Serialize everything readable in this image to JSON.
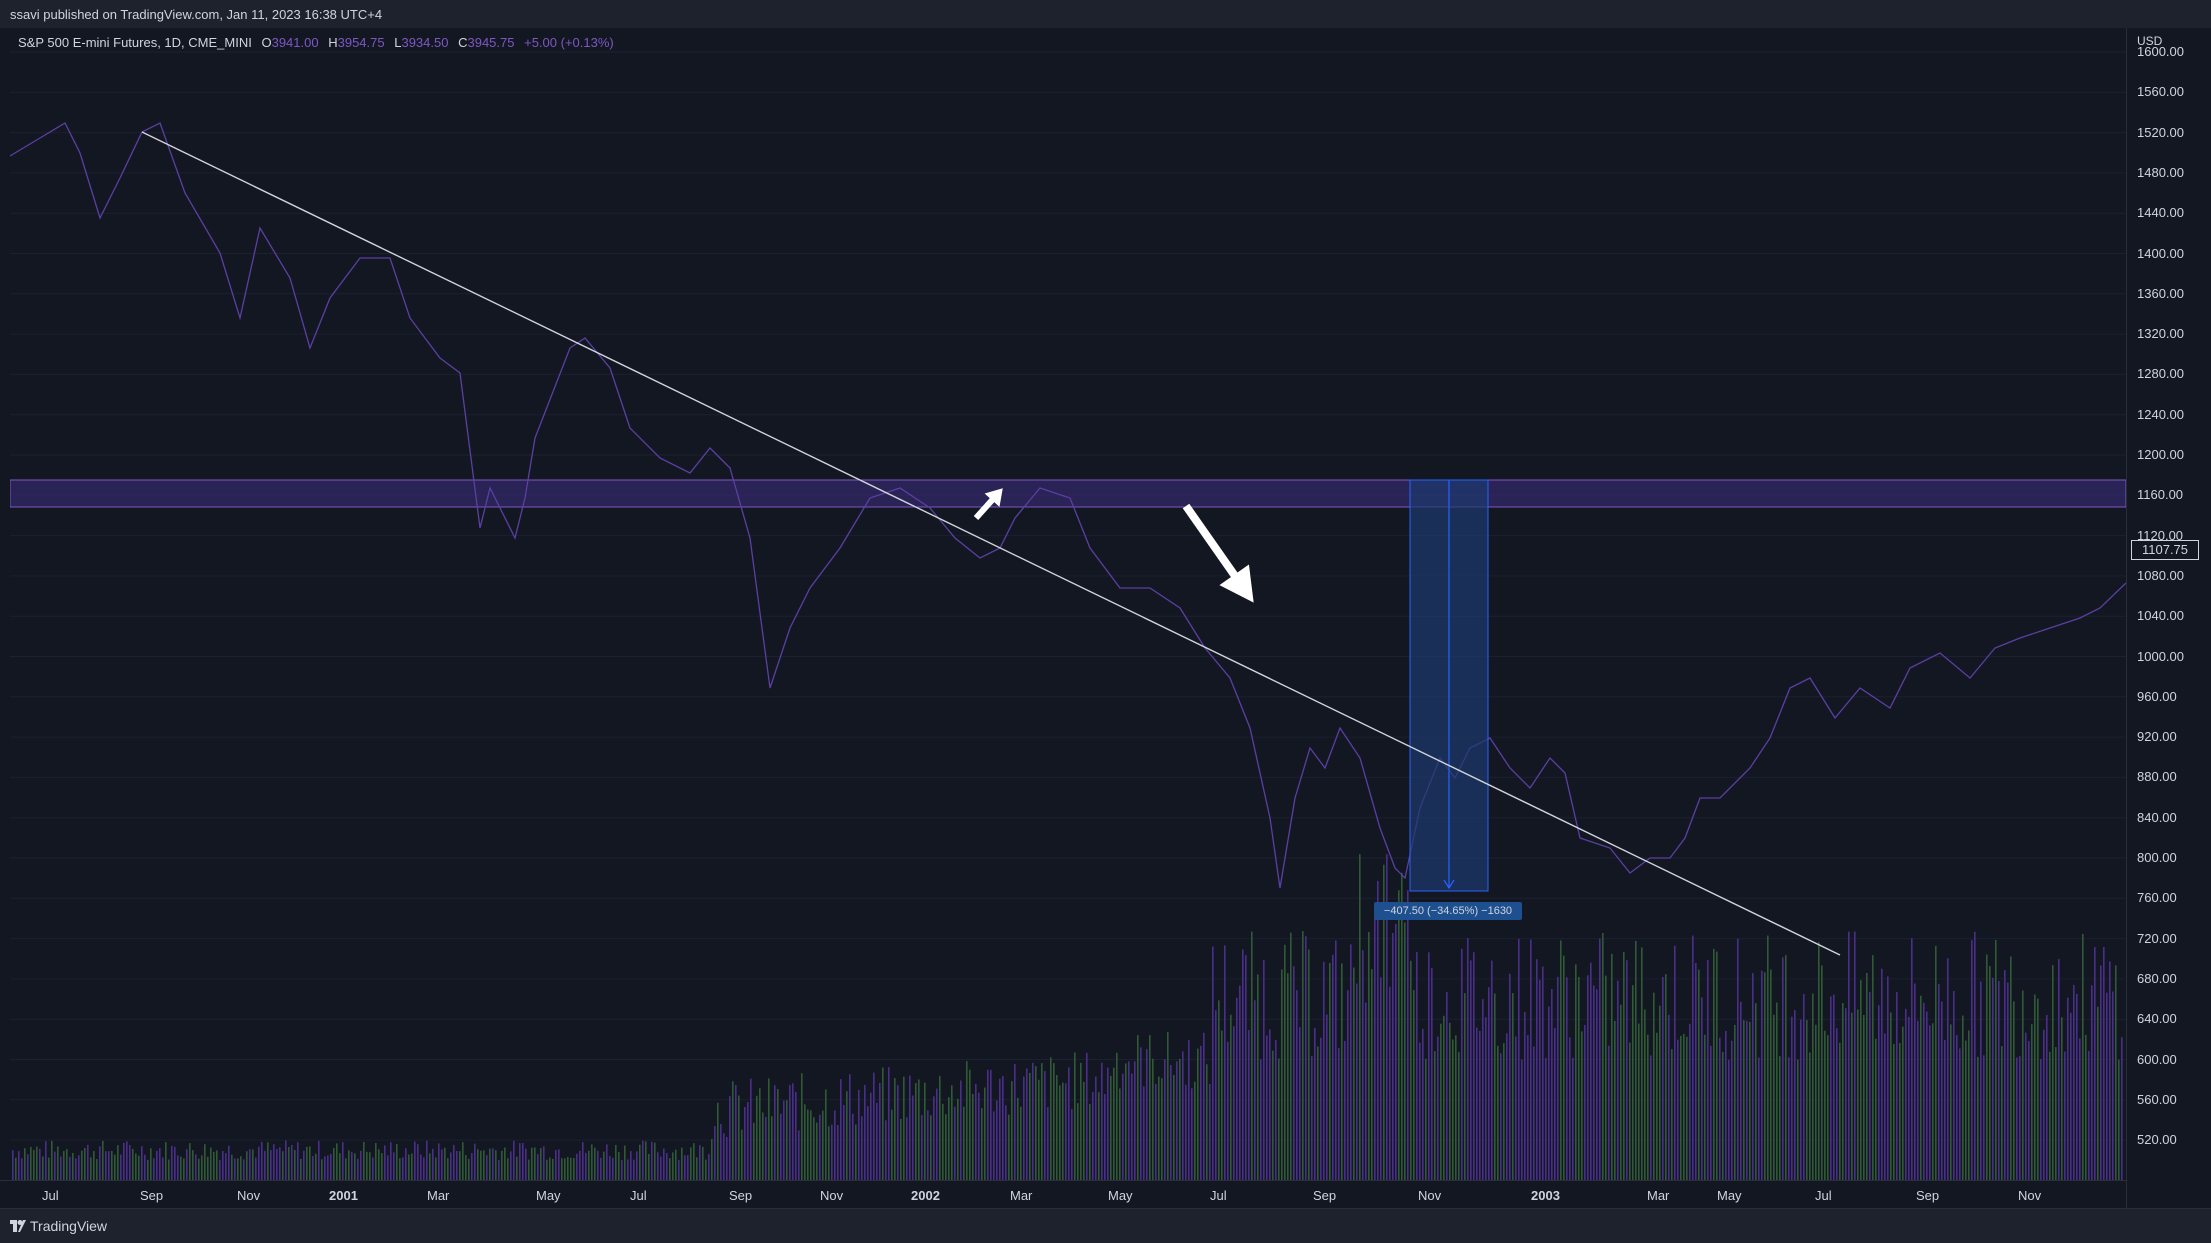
{
  "publisher": "ssavi published on TradingView.com, Jan 11, 2023 16:38 UTC+4",
  "legend": {
    "symbol": "S&P 500 E-mini Futures, 1D, CME_MINI",
    "o_label": "O",
    "o_val": "3941.00",
    "h_label": "H",
    "h_val": "3954.75",
    "l_label": "L",
    "l_val": "3934.50",
    "c_label": "C",
    "c_val": "3945.75",
    "change": "+5.00 (+0.13%)"
  },
  "price_scale": {
    "unit": "USD",
    "ticks": [
      "1600.00",
      "1560.00",
      "1520.00",
      "1480.00",
      "1440.00",
      "1400.00",
      "1360.00",
      "1320.00",
      "1280.00",
      "1240.00",
      "1200.00",
      "1160.00",
      "1120.00",
      "1080.00",
      "1040.00",
      "1000.00",
      "960.00",
      "920.00",
      "880.00",
      "840.00",
      "800.00",
      "760.00",
      "720.00",
      "680.00",
      "640.00",
      "600.00",
      "560.00",
      "520.00"
    ],
    "last_price": "1107.75"
  },
  "time_scale": {
    "ticks": [
      "Jul",
      "Sep",
      "Nov",
      "2001",
      "Mar",
      "May",
      "Jul",
      "Sep",
      "Nov",
      "2002",
      "Mar",
      "May",
      "Jul",
      "Sep",
      "Nov",
      "2003",
      "Mar",
      "May",
      "Jul",
      "Sep",
      "Nov"
    ],
    "bold_ticks": [
      "2001",
      "2002",
      "2003"
    ]
  },
  "measure": {
    "label": "−407.50 (−34.65%) −1630"
  },
  "colors": {
    "background": "#131722",
    "series": "#5b3fa3",
    "zone": "#4a3a9a",
    "measure": "#1e4f8f",
    "trendline": "#d1d4dc",
    "volume_up": "#2f5a35",
    "volume_down": "#4a2f8a"
  },
  "icons": {
    "event_marker": "dividend-event-icon",
    "logo": "tradingview-logo-icon"
  },
  "footer": {
    "brand": "TradingView"
  }
}
